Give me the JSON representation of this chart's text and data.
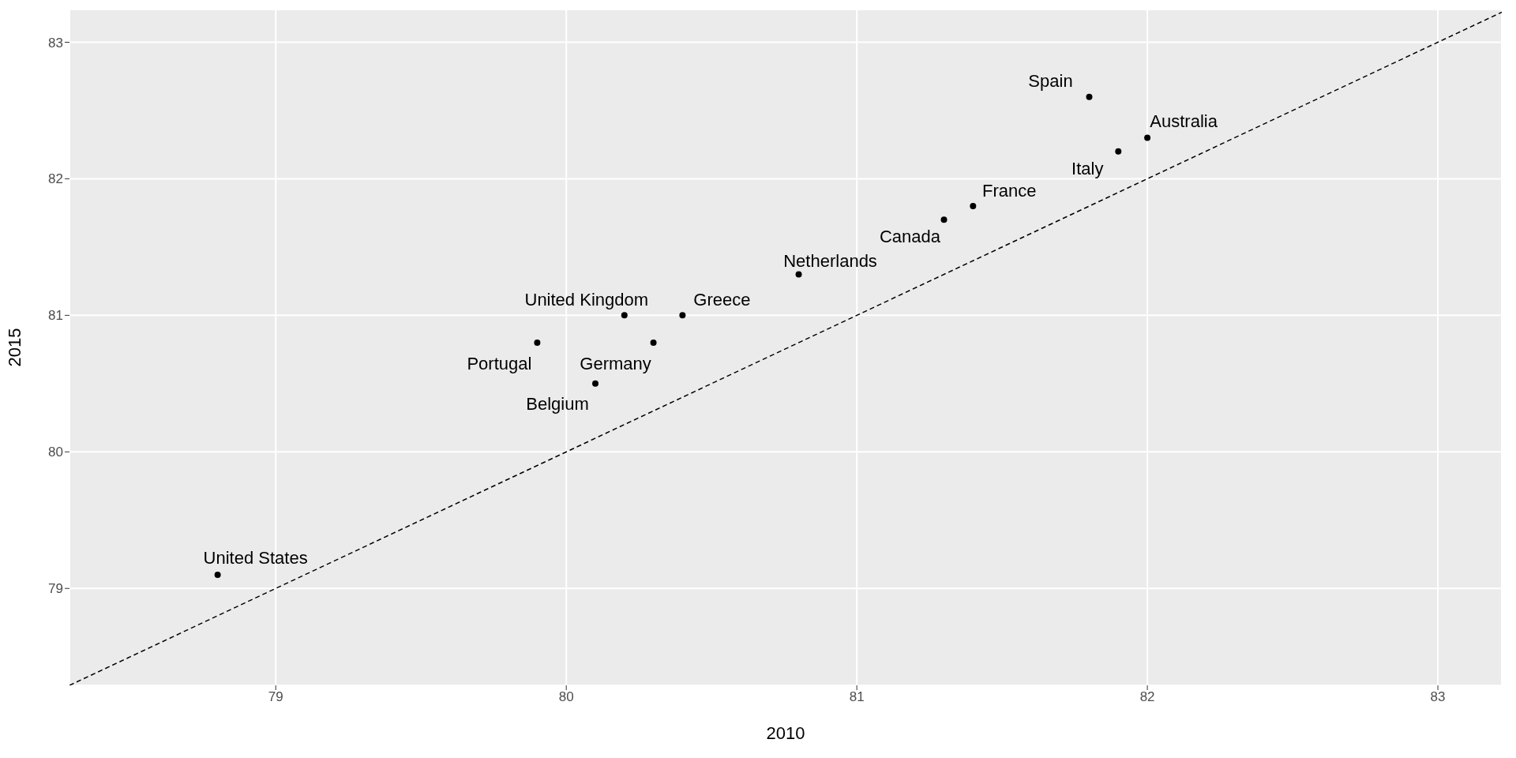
{
  "chart_data": {
    "type": "scatter",
    "xlabel": "2010",
    "ylabel": "2015",
    "xlim": [
      78.29,
      83.22
    ],
    "ylim": [
      78.29,
      83.24
    ],
    "xticks": [
      79,
      80,
      81,
      82,
      83
    ],
    "yticks": [
      79,
      80,
      81,
      82,
      83
    ],
    "grid": true,
    "legend": false,
    "series": [
      {
        "marker": "circle",
        "color": "#000000",
        "x": [
          78.8,
          79.9,
          80.1,
          80.2,
          80.3,
          80.4,
          80.8,
          81.3,
          81.4,
          81.8,
          81.9,
          82.0
        ],
        "values": [
          79.1,
          80.8,
          80.5,
          81.0,
          80.8,
          81.0,
          81.3,
          81.7,
          81.8,
          82.6,
          82.2,
          82.3
        ]
      },
      {
        "type": "line",
        "marker": "none",
        "color": "#000000",
        "line_style": "dashed",
        "x": [
          78.29,
          83.22
        ],
        "values": [
          78.29,
          83.22
        ]
      }
    ],
    "annotations": [
      {
        "text": "United States",
        "x": 78.8,
        "y": 79.1
      },
      {
        "text": "Portugal",
        "x": 79.9,
        "y": 80.8
      },
      {
        "text": "Belgium",
        "x": 80.1,
        "y": 80.5
      },
      {
        "text": "United Kingdom",
        "x": 80.2,
        "y": 81.0
      },
      {
        "text": "Germany",
        "x": 80.3,
        "y": 80.8
      },
      {
        "text": "Greece",
        "x": 80.4,
        "y": 81.0
      },
      {
        "text": "Netherlands",
        "x": 80.8,
        "y": 81.3
      },
      {
        "text": "Canada",
        "x": 81.3,
        "y": 81.7
      },
      {
        "text": "France",
        "x": 81.4,
        "y": 81.8
      },
      {
        "text": "Spain",
        "x": 81.8,
        "y": 82.6
      },
      {
        "text": "Italy",
        "x": 81.9,
        "y": 82.2
      },
      {
        "text": "Australia",
        "x": 82.0,
        "y": 82.3
      }
    ]
  }
}
